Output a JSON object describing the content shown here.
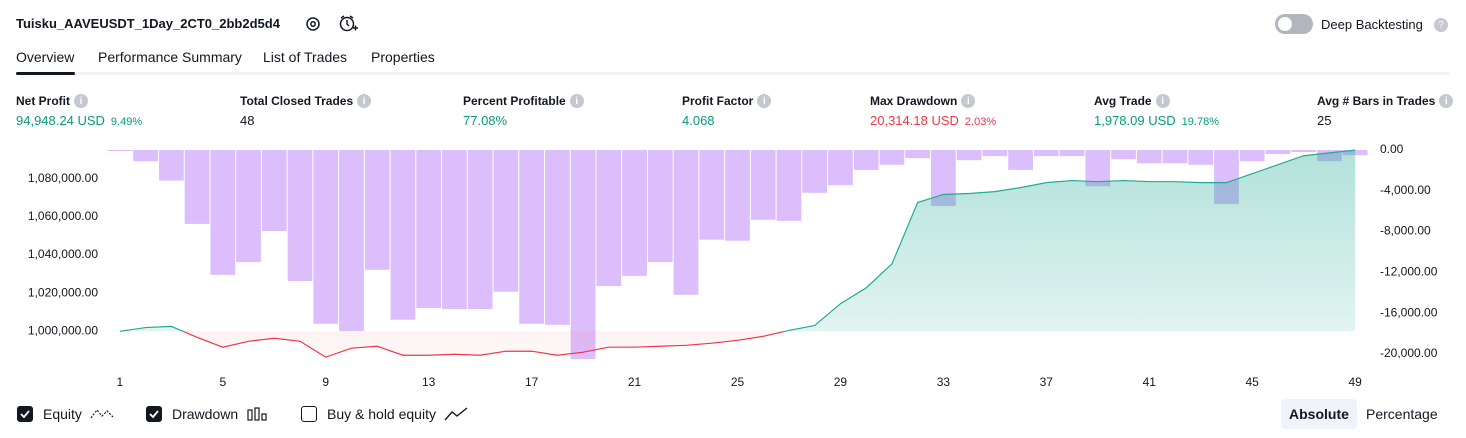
{
  "header": {
    "title": "Tuisku_AAVEUSDT_1Day_2CT0_2bb2d5d4",
    "deep_backtesting": {
      "label": "Deep Backtesting",
      "enabled": false
    }
  },
  "tabs": {
    "items": [
      "Overview",
      "Performance Summary",
      "List of Trades",
      "Properties"
    ],
    "active": 0
  },
  "metrics": [
    {
      "label": "Net Profit",
      "value": "94,948.24 USD",
      "percent": "9.49%",
      "color": "#089981"
    },
    {
      "label": "Total Closed Trades",
      "value": "48"
    },
    {
      "label": "Percent Profitable",
      "value": "77.08%",
      "color": "#089981"
    },
    {
      "label": "Profit Factor",
      "value": "4.068",
      "color": "#089981"
    },
    {
      "label": "Max Drawdown",
      "value": "20,314.18 USD",
      "percent": "2.03%",
      "color": "#f23645"
    },
    {
      "label": "Avg Trade",
      "value": "1,978.09 USD",
      "percent": "19.78%",
      "color": "#089981"
    },
    {
      "label": "Avg # Bars in Trades",
      "value": "25"
    }
  ],
  "chart_data": {
    "type": "combo",
    "x": [
      1,
      2,
      3,
      4,
      5,
      6,
      7,
      8,
      9,
      10,
      11,
      12,
      13,
      14,
      15,
      16,
      17,
      18,
      19,
      20,
      21,
      22,
      23,
      24,
      25,
      26,
      27,
      28,
      29,
      30,
      31,
      32,
      33,
      34,
      35,
      36,
      37,
      38,
      39,
      40,
      41,
      42,
      43,
      44,
      45,
      46,
      47,
      48,
      49
    ],
    "xlim": [
      0.5,
      49.5
    ],
    "xticks": [
      1,
      5,
      9,
      13,
      17,
      21,
      25,
      29,
      33,
      37,
      41,
      45,
      49
    ],
    "series": [
      {
        "name": "Equity",
        "checked": true,
        "type": "area",
        "color": "#22ab94",
        "negative_color": "#f23645",
        "values": [
          1000000,
          1002000,
          1002600,
          996900,
          991700,
          994800,
          996400,
          994800,
          986500,
          991200,
          992200,
          987500,
          987500,
          988000,
          987500,
          989600,
          989600,
          987500,
          989100,
          991700,
          991700,
          992200,
          992700,
          993800,
          995300,
          997400,
          1000500,
          1003100,
          1014500,
          1022800,
          1035300,
          1067500,
          1071700,
          1072200,
          1073200,
          1075300,
          1077900,
          1079000,
          1078400,
          1079000,
          1078400,
          1078400,
          1077900,
          1077900,
          1082600,
          1087300,
          1092000,
          1093500,
          1094948.24
        ]
      },
      {
        "name": "Drawdown",
        "checked": true,
        "type": "bar",
        "axis": "y2",
        "color": "rgba(185,125,250,0.5)",
        "values": [
          -100,
          -1100,
          -3000,
          -7250,
          -12250,
          -11000,
          -7950,
          -12850,
          -17050,
          -17750,
          -11750,
          -16650,
          -15500,
          -15600,
          -15600,
          -13900,
          -17050,
          -17150,
          -20500,
          -13350,
          -12350,
          -11000,
          -14200,
          -8800,
          -8900,
          -6850,
          -6950,
          -4200,
          -3450,
          -1950,
          -1450,
          -800,
          -5500,
          -1000,
          -600,
          -1950,
          -600,
          -600,
          -3550,
          -900,
          -1300,
          -1300,
          -1450,
          -5300,
          -1100,
          -400,
          -200,
          -1100,
          -500
        ]
      }
    ],
    "buy_hold": {
      "label": "Buy & hold equity",
      "checked": false
    },
    "ylim": [
      985000,
      1095000
    ],
    "yticks": [
      {
        "value": 1000000,
        "label": "1,000,000.00"
      },
      {
        "value": 1020000,
        "label": "1,020,000.00"
      },
      {
        "value": 1040000,
        "label": "1,040,000.00"
      },
      {
        "value": 1060000,
        "label": "1,060,000.00"
      },
      {
        "value": 1080000,
        "label": "1,080,000.00"
      }
    ],
    "y2lim": [
      -20600,
      0
    ],
    "y2ticks": [
      {
        "value": 0,
        "label": "0.00"
      },
      {
        "value": -4000,
        "label": "-4,000.00"
      },
      {
        "value": -8000,
        "label": "-8,000.00"
      },
      {
        "value": -12000,
        "label": "-12,000.00"
      },
      {
        "value": -16000,
        "label": "-16,000.00"
      },
      {
        "value": -20000,
        "label": "-20,000.00"
      }
    ]
  },
  "scale_modes": {
    "items": [
      "Absolute",
      "Percentage"
    ],
    "active": 0
  }
}
